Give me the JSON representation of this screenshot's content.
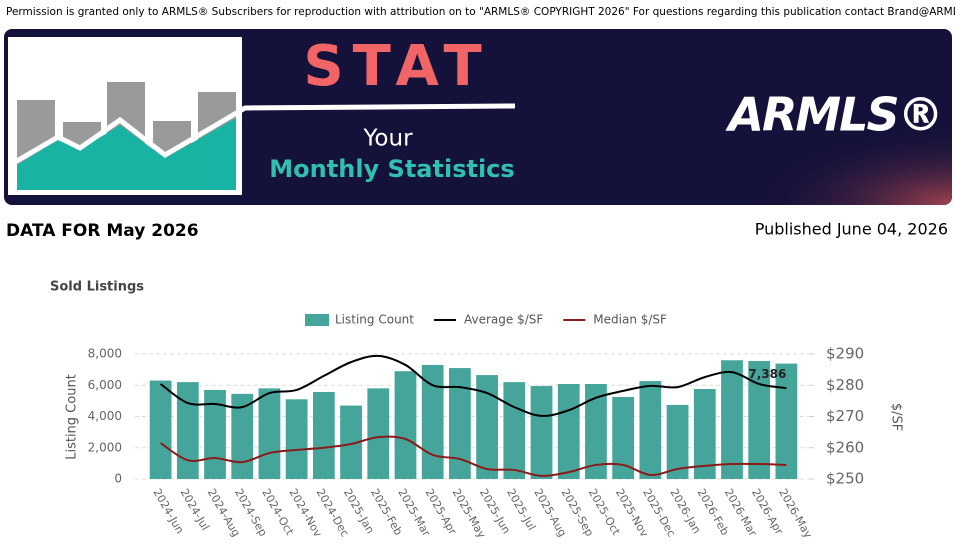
{
  "notice": "Permission is granted only to ARMLS® Subscribers for reproduction with attribution on to \"ARMLS® COPYRIGHT 2026\" For questions regarding this publication contact Brand@ARMLS.com.",
  "banner": {
    "title": "STAT",
    "line1": "Your",
    "line2": "Monthly Statistics",
    "logo": "ARMLS®"
  },
  "report": {
    "data_for": "DATA FOR May 2026",
    "published": "Published June 04, 2026"
  },
  "chart_data": {
    "type": "combo",
    "title": "Sold Listings",
    "y_label": "Listing Count",
    "y2_label": "$/SF",
    "categories": [
      "2024-Jun",
      "2024-Jul",
      "2024-Aug",
      "2024-Sep",
      "2024-Oct",
      "2024-Nov",
      "2024-Dec",
      "2025-Jan",
      "2025-Feb",
      "2025-Mar",
      "2025-Apr",
      "2025-May",
      "2025-Jun",
      "2025-Jul",
      "2025-Aug",
      "2025-Sep",
      "2025-Oct",
      "2025-Nov",
      "2025-Dec",
      "2026-Jan",
      "2026-Feb",
      "2026-Mar",
      "2026-Apr",
      "2026-May"
    ],
    "series": [
      {
        "name": "Listing Count",
        "type": "bar",
        "color": "#45a59a",
        "values": [
          6300,
          6200,
          5700,
          5450,
          5800,
          5100,
          5570,
          4700,
          5800,
          6900,
          7300,
          7100,
          6650,
          6200,
          5950,
          6080,
          6080,
          5250,
          6270,
          4740,
          5760,
          7600,
          7550,
          7386
        ],
        "value_labels": [
          null,
          null,
          null,
          null,
          null,
          null,
          null,
          null,
          null,
          null,
          null,
          null,
          null,
          null,
          null,
          null,
          null,
          null,
          null,
          null,
          null,
          null,
          null,
          "7,386"
        ]
      },
      {
        "name": "Average $/SF",
        "type": "line",
        "color": "#000000",
        "axis": "y2",
        "values": [
          280.4,
          274.3,
          274,
          273,
          277.5,
          278.5,
          283,
          287.4,
          289.4,
          286.5,
          280,
          279.4,
          277.5,
          273,
          270.2,
          272,
          276,
          278.2,
          279.8,
          279.4,
          282.6,
          284.2,
          280.4,
          279.1
        ]
      },
      {
        "name": "Median $/SF",
        "type": "line",
        "color": "#8b1a1a",
        "axis": "y2",
        "values": [
          261.5,
          256,
          256.7,
          255.4,
          258.3,
          259.3,
          260,
          261.2,
          263.4,
          262.8,
          257.7,
          256.4,
          253.2,
          252.9,
          251,
          252.2,
          254.5,
          254.5,
          251.3,
          253.2,
          254.2,
          254.8,
          254.8,
          254.5
        ]
      }
    ],
    "ylim": [
      0,
      8000
    ],
    "yticks": [
      0,
      {
        "value": 2000,
        "label": "2,000"
      },
      {
        "value": 4000,
        "label": "4,000"
      },
      {
        "value": 6000,
        "label": "6,000"
      },
      {
        "value": 8000,
        "label": "8,000"
      }
    ],
    "y2lim": [
      250,
      290
    ],
    "y2ticks": [
      {
        "value": 250,
        "label": "$250"
      },
      {
        "value": 260,
        "label": "$260"
      },
      {
        "value": 270,
        "label": "$270"
      },
      {
        "value": 280,
        "label": "$280"
      },
      {
        "value": 290,
        "label": "$290"
      }
    ],
    "grid": true,
    "legend": "top"
  }
}
